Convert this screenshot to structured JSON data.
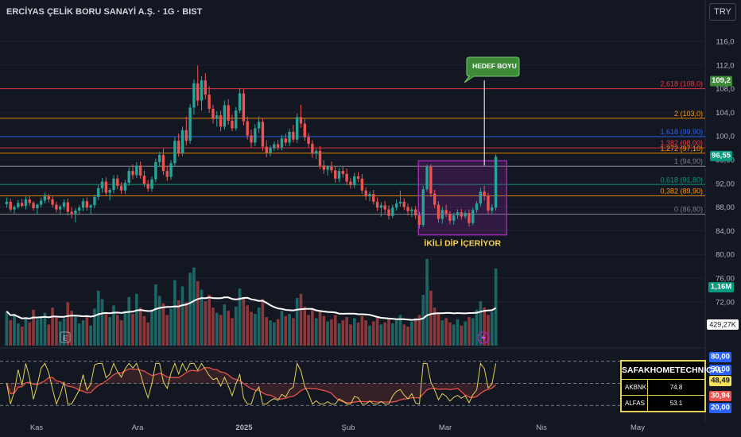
{
  "header": {
    "title": "ERCİYAS ÇELİK BORU SANAYİ A.Ş. · 1G · BIST",
    "currency": "TRY"
  },
  "chart_data": {
    "type": "candlestick",
    "title": "ERCİYAS ÇELİK BORU SANAYİ A.Ş. · 1G · BIST",
    "y_axis": {
      "ticks": [
        116.0,
        112.0,
        108.0,
        104.0,
        100.0,
        96.0,
        92.0,
        88.0,
        84.0,
        80.0,
        76.0,
        72.0
      ],
      "tick_labels": [
        "116,0",
        "112,0",
        "108,0",
        "104,0",
        "100,0",
        "96,00",
        "92,00",
        "88,00",
        "84,00",
        "80,00",
        "76,00",
        "72,00"
      ]
    },
    "x_axis": {
      "tick_labels": [
        "Kas",
        "Ara",
        "2025",
        "Şub",
        "Mar",
        "Nis",
        "May"
      ]
    },
    "last_price": {
      "value": 96.55,
      "label": "96,55"
    },
    "target_price": {
      "value": 109.2,
      "label": "109,2"
    },
    "fibonacci": [
      {
        "label": "2,618 (108,0)",
        "value": 108.0,
        "color": "#f23645"
      },
      {
        "label": "2 (103,0)",
        "value": 103.0,
        "color": "#ff9800"
      },
      {
        "label": "1,618 (99,90)",
        "value": 99.9,
        "color": "#2962ff"
      },
      {
        "label": "1,382 (98,00)",
        "value": 98.0,
        "color": "#f23645"
      },
      {
        "label": "1,272 (97,10)",
        "value": 97.1,
        "color": "#ff9800"
      },
      {
        "label": "1 (94,90)",
        "value": 94.9,
        "color": "#787b86"
      },
      {
        "label": "0,618 (91,80)",
        "value": 91.8,
        "color": "#089981"
      },
      {
        "label": "0,382 (89,90)",
        "value": 89.9,
        "color": "#ff9800"
      },
      {
        "label": "0 (86,80)",
        "value": 86.8,
        "color": "#787b86"
      }
    ],
    "annotations": [
      {
        "text": "HEDEF BOYU"
      },
      {
        "text": "İKİLİ DİP İÇERİYOR"
      },
      {
        "text": "E"
      }
    ],
    "volume": {
      "last_label": "1,16M",
      "ma_label": "429,27K"
    },
    "oscillator": {
      "ticks": [
        "80,00",
        "50,00",
        "48,49",
        "30,94",
        "20,00"
      ],
      "levels": [
        80,
        50,
        20
      ]
    },
    "ohlc": [
      [
        88.5,
        89.6,
        87.9,
        88.9
      ],
      [
        88.9,
        89.4,
        87.2,
        87.6
      ],
      [
        87.6,
        88.3,
        86.9,
        88.0
      ],
      [
        88.0,
        89.2,
        87.7,
        88.7
      ],
      [
        88.7,
        89.4,
        87.9,
        88.2
      ],
      [
        88.2,
        89.8,
        87.6,
        89.3
      ],
      [
        89.3,
        89.9,
        88.2,
        88.7
      ],
      [
        88.7,
        89.0,
        87.4,
        87.8
      ],
      [
        87.8,
        88.6,
        86.8,
        88.4
      ],
      [
        88.4,
        89.6,
        87.9,
        89.1
      ],
      [
        89.1,
        90.4,
        88.6,
        89.8
      ],
      [
        89.8,
        90.2,
        88.8,
        89.3
      ],
      [
        89.3,
        89.8,
        87.9,
        88.4
      ],
      [
        88.4,
        88.9,
        87.1,
        87.6
      ],
      [
        87.6,
        88.4,
        86.7,
        88.1
      ],
      [
        88.1,
        89.3,
        87.6,
        88.8
      ],
      [
        88.8,
        89.5,
        86.6,
        87.2
      ],
      [
        87.2,
        88.0,
        86.1,
        86.9
      ],
      [
        86.9,
        87.8,
        85.4,
        87.4
      ],
      [
        87.4,
        88.3,
        86.8,
        87.9
      ],
      [
        87.9,
        89.5,
        87.3,
        89.0
      ],
      [
        89.0,
        89.6,
        87.4,
        87.9
      ],
      [
        87.9,
        88.5,
        86.9,
        88.3
      ],
      [
        88.3,
        90.1,
        87.8,
        89.7
      ],
      [
        89.7,
        91.8,
        89.2,
        91.2
      ],
      [
        91.2,
        92.9,
        90.4,
        92.3
      ],
      [
        92.3,
        93.0,
        89.9,
        90.4
      ],
      [
        90.4,
        91.2,
        89.1,
        90.9
      ],
      [
        90.9,
        93.4,
        90.3,
        92.8
      ],
      [
        92.8,
        93.4,
        91.0,
        91.6
      ],
      [
        91.6,
        92.2,
        90.2,
        90.8
      ],
      [
        90.8,
        92.6,
        90.2,
        92.1
      ],
      [
        92.1,
        94.7,
        91.6,
        94.1
      ],
      [
        94.1,
        95.2,
        92.7,
        93.4
      ],
      [
        93.4,
        95.6,
        92.9,
        95.0
      ],
      [
        95.0,
        95.7,
        92.8,
        93.3
      ],
      [
        93.3,
        94.2,
        91.4,
        91.9
      ],
      [
        91.9,
        92.6,
        90.6,
        91.1
      ],
      [
        91.1,
        93.2,
        90.6,
        92.7
      ],
      [
        92.7,
        96.2,
        92.2,
        95.6
      ],
      [
        95.6,
        97.3,
        94.8,
        96.8
      ],
      [
        96.8,
        97.9,
        93.4,
        94.1
      ],
      [
        94.1,
        95.0,
        92.4,
        93.1
      ],
      [
        93.1,
        95.9,
        92.6,
        95.4
      ],
      [
        95.4,
        99.8,
        94.9,
        99.2
      ],
      [
        99.2,
        100.4,
        96.5,
        97.1
      ],
      [
        97.1,
        101.6,
        96.6,
        101.0
      ],
      [
        101.0,
        103.3,
        98.4,
        99.2
      ],
      [
        99.2,
        105.4,
        98.7,
        104.8
      ],
      [
        104.8,
        109.6,
        103.6,
        108.9
      ],
      [
        108.9,
        111.9,
        105.1,
        106.0
      ],
      [
        106.0,
        110.1,
        104.3,
        109.4
      ],
      [
        109.4,
        110.6,
        106.2,
        107.0
      ],
      [
        107.0,
        108.4,
        103.9,
        104.6
      ],
      [
        104.6,
        105.3,
        102.1,
        102.9
      ],
      [
        102.9,
        104.2,
        101.6,
        103.5
      ],
      [
        103.5,
        104.3,
        100.8,
        101.6
      ],
      [
        101.6,
        106.0,
        101.1,
        105.2
      ],
      [
        105.2,
        106.2,
        101.9,
        102.6
      ],
      [
        102.6,
        103.6,
        100.8,
        101.3
      ],
      [
        101.3,
        104.9,
        100.9,
        104.3
      ],
      [
        104.3,
        108.1,
        103.8,
        107.2
      ],
      [
        107.2,
        107.9,
        101.8,
        102.5
      ],
      [
        102.5,
        103.3,
        99.4,
        100.1
      ],
      [
        100.1,
        101.1,
        98.1,
        98.9
      ],
      [
        98.9,
        102.0,
        98.3,
        101.3
      ],
      [
        101.3,
        103.3,
        100.5,
        102.4
      ],
      [
        102.4,
        102.9,
        97.5,
        98.2
      ],
      [
        98.2,
        99.3,
        96.4,
        97.2
      ],
      [
        97.2,
        98.4,
        96.6,
        98.0
      ],
      [
        98.0,
        99.1,
        97.5,
        98.6
      ],
      [
        98.6,
        99.4,
        97.6,
        98.1
      ],
      [
        98.1,
        100.2,
        97.6,
        99.6
      ],
      [
        99.6,
        100.4,
        98.3,
        98.9
      ],
      [
        98.9,
        101.2,
        98.3,
        100.7
      ],
      [
        100.7,
        101.9,
        98.9,
        99.4
      ],
      [
        99.4,
        103.8,
        98.8,
        103.2
      ],
      [
        103.2,
        105.3,
        101.4,
        102.1
      ],
      [
        102.1,
        103.0,
        99.2,
        99.8
      ],
      [
        99.8,
        100.5,
        98.1,
        98.7
      ],
      [
        98.7,
        99.3,
        96.3,
        97.0
      ],
      [
        97.0,
        97.9,
        96.1,
        97.5
      ],
      [
        97.5,
        98.3,
        94.4,
        95.0
      ],
      [
        95.0,
        95.9,
        93.6,
        94.3
      ],
      [
        94.3,
        95.1,
        93.3,
        94.8
      ],
      [
        94.8,
        95.7,
        93.7,
        94.2
      ],
      [
        94.2,
        94.8,
        92.1,
        92.8
      ],
      [
        92.8,
        94.6,
        92.2,
        94.1
      ],
      [
        94.1,
        94.8,
        93.0,
        93.6
      ],
      [
        93.6,
        94.5,
        91.7,
        92.3
      ],
      [
        92.3,
        92.9,
        91.1,
        91.7
      ],
      [
        91.7,
        93.8,
        91.2,
        93.2
      ],
      [
        93.2,
        93.9,
        92.2,
        92.8
      ],
      [
        92.8,
        93.6,
        90.2,
        90.8
      ],
      [
        90.8,
        91.3,
        89.2,
        89.8
      ],
      [
        89.8,
        90.6,
        89.0,
        90.2
      ],
      [
        90.2,
        90.9,
        88.4,
        88.9
      ],
      [
        88.9,
        89.6,
        87.3,
        87.9
      ],
      [
        87.9,
        88.8,
        86.4,
        88.3
      ],
      [
        88.3,
        89.0,
        86.9,
        87.6
      ],
      [
        87.6,
        88.3,
        85.9,
        86.5
      ],
      [
        86.5,
        88.4,
        86.1,
        87.9
      ],
      [
        87.9,
        89.3,
        87.4,
        88.6
      ],
      [
        88.6,
        90.8,
        88.1,
        88.9
      ],
      [
        88.9,
        89.5,
        87.5,
        88.0
      ],
      [
        88.0,
        88.6,
        86.6,
        87.3
      ],
      [
        87.3,
        88.0,
        86.3,
        87.6
      ],
      [
        87.6,
        88.2,
        86.0,
        86.6
      ],
      [
        86.6,
        87.2,
        84.4,
        85.0
      ],
      [
        85.0,
        91.6,
        84.6,
        91.0
      ],
      [
        91.0,
        95.2,
        90.6,
        94.8
      ],
      [
        94.8,
        95.2,
        89.7,
        90.3
      ],
      [
        90.3,
        90.9,
        87.8,
        88.4
      ],
      [
        88.4,
        89.0,
        85.4,
        86.0
      ],
      [
        86.0,
        88.0,
        85.2,
        87.5
      ],
      [
        87.5,
        88.4,
        86.3,
        86.9
      ],
      [
        86.9,
        87.3,
        85.1,
        85.7
      ],
      [
        85.7,
        87.0,
        85.0,
        86.6
      ],
      [
        86.6,
        87.6,
        86.0,
        87.1
      ],
      [
        87.1,
        87.7,
        85.9,
        86.4
      ],
      [
        86.4,
        87.4,
        86.0,
        87.0
      ],
      [
        87.0,
        87.6,
        84.7,
        85.3
      ],
      [
        85.3,
        87.9,
        84.9,
        87.5
      ],
      [
        87.5,
        89.0,
        87.0,
        88.6
      ],
      [
        88.6,
        91.2,
        88.1,
        90.6
      ],
      [
        90.6,
        91.6,
        89.1,
        89.9
      ],
      [
        89.9,
        90.4,
        86.8,
        87.4
      ],
      [
        87.4,
        88.5,
        86.9,
        87.9
      ],
      [
        87.9,
        96.9,
        87.4,
        96.5
      ]
    ],
    "volumes": [
      3.2,
      2.4,
      2.9,
      2.1,
      1.8,
      2.6,
      2.2,
      3.4,
      2.5,
      2.8,
      3.1,
      2.0,
      3.6,
      2.7,
      2.3,
      2.6,
      4.1,
      3.3,
      2.9,
      2.1,
      2.4,
      2.8,
      1.9,
      3.5,
      5.2,
      4.4,
      3.1,
      2.7,
      3.8,
      2.9,
      2.4,
      3.3,
      4.6,
      3.0,
      4.9,
      3.6,
      2.8,
      2.2,
      3.4,
      5.8,
      4.7,
      4.0,
      2.9,
      3.5,
      6.2,
      4.3,
      5.6,
      4.1,
      6.9,
      7.4,
      6.1,
      5.3,
      4.2,
      4.8,
      3.6,
      3.1,
      2.9,
      3.9,
      3.3,
      2.6,
      3.7,
      5.4,
      4.6,
      3.8,
      3.2,
      3.0,
      3.6,
      4.4,
      2.7,
      2.4,
      2.2,
      2.5,
      3.3,
      2.8,
      3.0,
      2.6,
      4.5,
      4.9,
      3.7,
      2.9,
      3.4,
      2.6,
      3.2,
      2.8,
      2.3,
      2.5,
      2.9,
      2.1,
      2.4,
      2.7,
      2.0,
      2.6,
      2.2,
      2.8,
      2.4,
      1.9,
      2.3,
      2.7,
      2.0,
      2.2,
      2.6,
      2.1,
      2.4,
      2.9,
      2.0,
      1.8,
      2.3,
      2.6,
      2.9,
      4.8,
      8.2,
      5.2,
      3.6,
      3.1,
      2.4,
      2.6,
      2.2,
      2.0,
      2.5,
      1.9,
      2.3,
      2.7,
      2.6,
      3.4,
      4.2,
      3.6,
      2.9,
      3.2,
      7.3
    ]
  },
  "table": {
    "title": "SAFAKHOMETECHNICAL",
    "rows": [
      {
        "symbol": "AKBNK",
        "value": "74.8"
      },
      {
        "symbol": "ALFAS",
        "value": "53.1"
      }
    ]
  }
}
